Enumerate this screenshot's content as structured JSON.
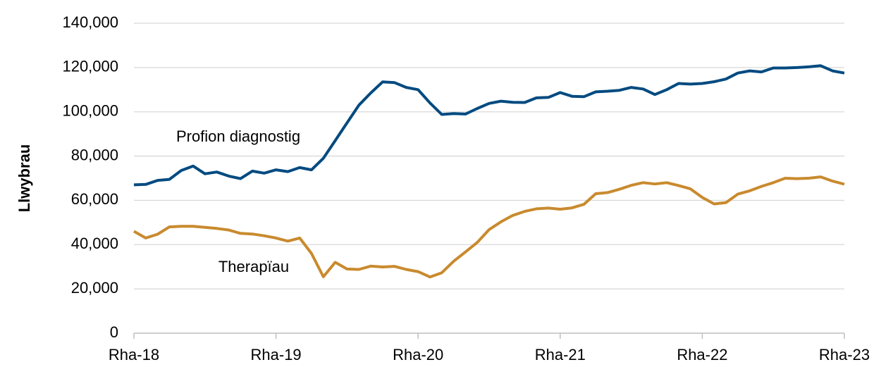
{
  "chart_data": {
    "type": "line",
    "y_label": "Llwybrau",
    "categories": [
      "Rha-18",
      null,
      null,
      null,
      null,
      null,
      null,
      null,
      null,
      null,
      null,
      null,
      "Rha-19",
      null,
      null,
      null,
      null,
      null,
      null,
      null,
      null,
      null,
      null,
      null,
      "Rha-20",
      null,
      null,
      null,
      null,
      null,
      null,
      null,
      null,
      null,
      null,
      null,
      "Rha-21",
      null,
      null,
      null,
      null,
      null,
      null,
      null,
      null,
      null,
      null,
      null,
      "Rha-22",
      null,
      null,
      null,
      null,
      null,
      null,
      null,
      null,
      null,
      null,
      null,
      "Rha-23"
    ],
    "series": [
      {
        "name": "Profion diagnostig",
        "color": "#004a80",
        "values": [
          67000,
          67200,
          69000,
          69500,
          73500,
          75500,
          72000,
          72800,
          71000,
          69800,
          73200,
          72300,
          73800,
          73000,
          74800,
          73800,
          79000,
          87000,
          95000,
          103000,
          108500,
          113500,
          113200,
          111000,
          110000,
          104000,
          98800,
          99200,
          99000,
          101500,
          103800,
          104800,
          104300,
          104200,
          106300,
          106500,
          108700,
          107000,
          106800,
          109000,
          109300,
          109700,
          111000,
          110300,
          107800,
          110000,
          112800,
          112500,
          112800,
          113600,
          114800,
          117500,
          118500,
          118000,
          119800,
          119800,
          120000,
          120300,
          120800,
          118500,
          117500
        ]
      },
      {
        "name": "Therapïau",
        "color": "#c98a2e",
        "values": [
          46000,
          43000,
          44700,
          48000,
          48300,
          48300,
          47800,
          47300,
          46600,
          45100,
          44800,
          44000,
          43000,
          41600,
          43000,
          36000,
          25500,
          32000,
          29000,
          28800,
          30300,
          29900,
          30200,
          28800,
          27800,
          25400,
          27300,
          32500,
          36700,
          41000,
          46800,
          50300,
          53200,
          55000,
          56200,
          56500,
          56000,
          56600,
          58200,
          63000,
          63500,
          65000,
          66800,
          68000,
          67400,
          68000,
          66700,
          65200,
          61300,
          58400,
          59000,
          62800,
          64300,
          66300,
          68000,
          70000,
          69800,
          70000,
          70600,
          68700,
          67300
        ]
      }
    ],
    "ylim": [
      0,
      140000
    ],
    "yticks": [
      0,
      {
        "value": 20000,
        "label": "20,000"
      },
      {
        "value": 40000,
        "label": "40,000"
      },
      {
        "value": 60000,
        "label": "60,000"
      },
      {
        "value": 80000,
        "label": "80,000"
      },
      {
        "value": 100000,
        "label": "100,000"
      },
      {
        "value": 120000,
        "label": "120,000"
      },
      {
        "value": 140000,
        "label": "140,000"
      }
    ],
    "grid": true
  }
}
